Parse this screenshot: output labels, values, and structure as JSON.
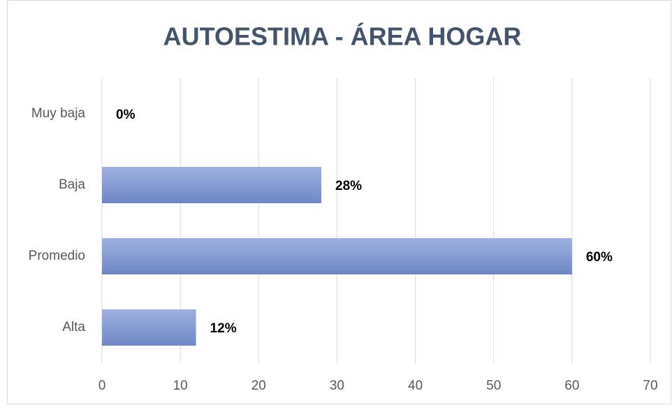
{
  "chart_data": {
    "type": "bar",
    "orientation": "horizontal",
    "title": "AUTOESTIMA - ÁREA HOGAR",
    "categories": [
      "Muy baja",
      "Baja",
      "Promedio",
      "Alta"
    ],
    "values": [
      0,
      28,
      60,
      12
    ],
    "value_labels": [
      "0%",
      "28%",
      "60%",
      "12%"
    ],
    "color": "#8097cf",
    "xlim": [
      0,
      70
    ],
    "xticks": [
      0,
      10,
      20,
      30,
      40,
      50,
      60,
      70
    ],
    "grid": true
  }
}
